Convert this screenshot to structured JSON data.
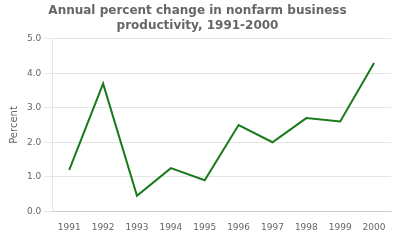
{
  "chart_data": {
    "type": "line",
    "title": "Annual percent change in nonfarm business\nproductivity, 1991-2000",
    "ylabel": "Percent",
    "x": [
      1991,
      1992,
      1993,
      1994,
      1995,
      1996,
      1997,
      1998,
      1999,
      2000
    ],
    "values": [
      1.2,
      3.7,
      0.45,
      1.25,
      0.9,
      2.5,
      2.0,
      2.7,
      2.6,
      4.3
    ],
    "color": "#1a7a1a",
    "xlim": [
      1990.5,
      2000.5
    ],
    "xticks": [
      1991,
      1992,
      1993,
      1994,
      1995,
      1996,
      1997,
      1998,
      1999,
      2000
    ],
    "ylim": [
      0.0,
      5.0
    ],
    "yticks": [
      {
        "value": 0,
        "label": "0.0"
      },
      {
        "value": 1,
        "label": "1.0"
      },
      {
        "value": 2,
        "label": "2.0"
      },
      {
        "value": 3,
        "label": "3.0"
      },
      {
        "value": 4,
        "label": "4.0"
      },
      {
        "value": 5,
        "label": "5.0"
      }
    ],
    "grid": "y"
  }
}
